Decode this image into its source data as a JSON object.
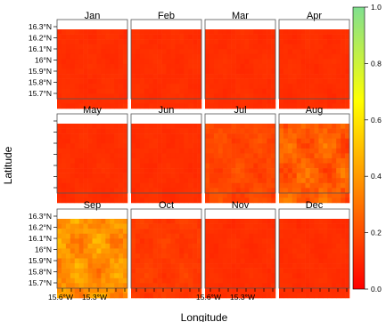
{
  "chart_data": {
    "type": "heatmap",
    "title": "",
    "xlabel": "Longitude",
    "ylabel": "Latitude",
    "layout": {
      "rows": 3,
      "cols": 4
    },
    "panels": [
      {
        "label": "Jan",
        "base": 0.12,
        "variation": 0.02
      },
      {
        "label": "Feb",
        "base": 0.12,
        "variation": 0.02
      },
      {
        "label": "Mar",
        "base": 0.12,
        "variation": 0.02
      },
      {
        "label": "Apr",
        "base": 0.12,
        "variation": 0.02
      },
      {
        "label": "May",
        "base": 0.12,
        "variation": 0.02
      },
      {
        "label": "Jun",
        "base": 0.12,
        "variation": 0.02
      },
      {
        "label": "Jul",
        "base": 0.18,
        "variation": 0.06
      },
      {
        "label": "Aug",
        "base": 0.24,
        "variation": 0.12
      },
      {
        "label": "Sep",
        "base": 0.38,
        "variation": 0.14
      },
      {
        "label": "Oct",
        "base": 0.15,
        "variation": 0.04
      },
      {
        "label": "Nov",
        "base": 0.12,
        "variation": 0.02
      },
      {
        "label": "Dec",
        "base": 0.12,
        "variation": 0.02
      }
    ],
    "y_ticks": [
      "16.3°N",
      "16.2°N",
      "16.1°N",
      "16°N",
      "15.9°N",
      "15.8°N",
      "15.7°N"
    ],
    "x_ticks": [
      "15.6°W",
      "15.3°W"
    ],
    "colorbar": {
      "range": [
        0.0,
        1.0
      ],
      "ticks": [
        "0.0",
        "0.2",
        "0.4",
        "0.6",
        "0.8",
        "1.0"
      ],
      "colors": [
        "#ff0000",
        "#ff8000",
        "#ffff00",
        "#80e090"
      ]
    }
  }
}
